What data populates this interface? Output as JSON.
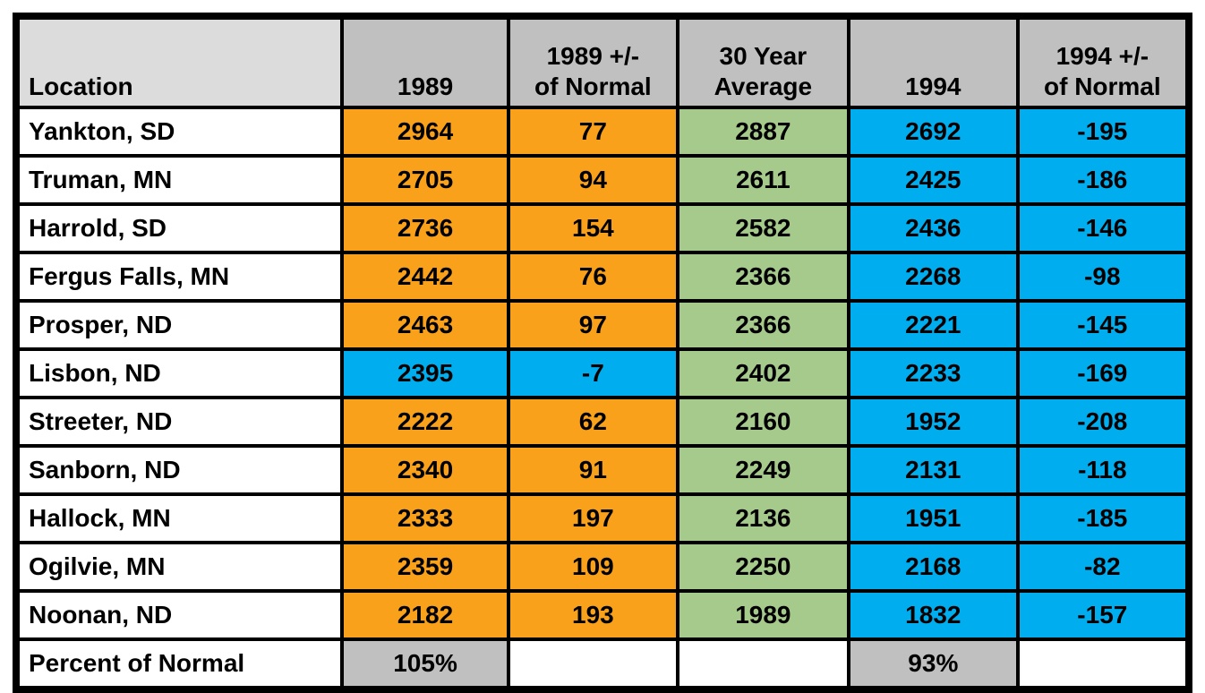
{
  "palette": {
    "orange": "#F9A11B",
    "blue": "#00AEEF",
    "green": "#A6CA8C",
    "header_gray": "#C0C0C0",
    "location_header_gray": "#DCDCDC",
    "footer_gray": "#C0C0C0",
    "row_white": "#FFFFFF",
    "border_black": "#000000"
  },
  "table": {
    "columns": [
      {
        "label": "Location"
      },
      {
        "label": "1989"
      },
      {
        "label": "1989 +/-\nof Normal"
      },
      {
        "label": "30 Year\nAverage"
      },
      {
        "label": "1994"
      },
      {
        "label": "1994 +/-\nof Normal"
      }
    ],
    "rows": [
      {
        "location": "Yankton, SD",
        "values": [
          "2964",
          "77",
          "2887",
          "2692",
          "-195"
        ],
        "colors": [
          "orange",
          "orange",
          "green",
          "blue",
          "blue"
        ]
      },
      {
        "location": "Truman, MN",
        "values": [
          "2705",
          "94",
          "2611",
          "2425",
          "-186"
        ],
        "colors": [
          "orange",
          "orange",
          "green",
          "blue",
          "blue"
        ]
      },
      {
        "location": "Harrold, SD",
        "values": [
          "2736",
          "154",
          "2582",
          "2436",
          "-146"
        ],
        "colors": [
          "orange",
          "orange",
          "green",
          "blue",
          "blue"
        ]
      },
      {
        "location": "Fergus Falls, MN",
        "values": [
          "2442",
          "76",
          "2366",
          "2268",
          "-98"
        ],
        "colors": [
          "orange",
          "orange",
          "green",
          "blue",
          "blue"
        ]
      },
      {
        "location": "Prosper, ND",
        "values": [
          "2463",
          "97",
          "2366",
          "2221",
          "-145"
        ],
        "colors": [
          "orange",
          "orange",
          "green",
          "blue",
          "blue"
        ]
      },
      {
        "location": "Lisbon, ND",
        "values": [
          "2395",
          "-7",
          "2402",
          "2233",
          "-169"
        ],
        "colors": [
          "blue",
          "blue",
          "green",
          "blue",
          "blue"
        ]
      },
      {
        "location": "Streeter, ND",
        "values": [
          "2222",
          "62",
          "2160",
          "1952",
          "-208"
        ],
        "colors": [
          "orange",
          "orange",
          "green",
          "blue",
          "blue"
        ]
      },
      {
        "location": "Sanborn, ND",
        "values": [
          "2340",
          "91",
          "2249",
          "2131",
          "-118"
        ],
        "colors": [
          "orange",
          "orange",
          "green",
          "blue",
          "blue"
        ]
      },
      {
        "location": "Hallock, MN",
        "values": [
          "2333",
          "197",
          "2136",
          "1951",
          "-185"
        ],
        "colors": [
          "orange",
          "orange",
          "green",
          "blue",
          "blue"
        ]
      },
      {
        "location": "Ogilvie, MN",
        "values": [
          "2359",
          "109",
          "2250",
          "2168",
          "-82"
        ],
        "colors": [
          "orange",
          "orange",
          "green",
          "blue",
          "blue"
        ]
      },
      {
        "location": "Noonan, ND",
        "values": [
          "2182",
          "193",
          "1989",
          "1832",
          "-157"
        ],
        "colors": [
          "orange",
          "orange",
          "green",
          "blue",
          "blue"
        ]
      }
    ],
    "footer": {
      "label": "Percent of Normal",
      "label_color": "gray",
      "values": [
        "105%",
        "",
        "",
        "93%",
        ""
      ],
      "colors": [
        "gray",
        "white",
        "white",
        "gray",
        "white"
      ]
    }
  },
  "chart_data": {
    "type": "table",
    "columns": [
      "Location",
      "1989",
      "1989 +/- of Normal",
      "30 Year Average",
      "1994",
      "1994 +/- of Normal"
    ],
    "rows": [
      [
        "Yankton, SD",
        2964,
        77,
        2887,
        2692,
        -195
      ],
      [
        "Truman, MN",
        2705,
        94,
        2611,
        2425,
        -186
      ],
      [
        "Harrold, SD",
        2736,
        154,
        2582,
        2436,
        -146
      ],
      [
        "Fergus Falls, MN",
        2442,
        76,
        2366,
        2268,
        -98
      ],
      [
        "Prosper, ND",
        2463,
        97,
        2366,
        2221,
        -145
      ],
      [
        "Lisbon, ND",
        2395,
        -7,
        2402,
        2233,
        -169
      ],
      [
        "Streeter, ND",
        2222,
        62,
        2160,
        1952,
        -208
      ],
      [
        "Sanborn, ND",
        2340,
        91,
        2249,
        2131,
        -118
      ],
      [
        "Hallock, MN",
        2333,
        197,
        2136,
        1951,
        -185
      ],
      [
        "Ogilvie, MN",
        2359,
        109,
        2250,
        2168,
        -82
      ],
      [
        "Noonan, ND",
        2182,
        193,
        1989,
        1832,
        -157
      ]
    ],
    "footer_row": [
      "Percent of Normal",
      "105%",
      "",
      "",
      "93%",
      ""
    ],
    "cell_fill_colors": {
      "col_1989_default": "#F9A11B",
      "col_1989_lisbon_row": "#00AEEF",
      "col_30yr_average": "#A6CA8C",
      "col_1994": "#00AEEF",
      "header": "#C0C0C0",
      "location_header": "#DCDCDC",
      "footer_value_cells": "#C0C0C0"
    }
  }
}
